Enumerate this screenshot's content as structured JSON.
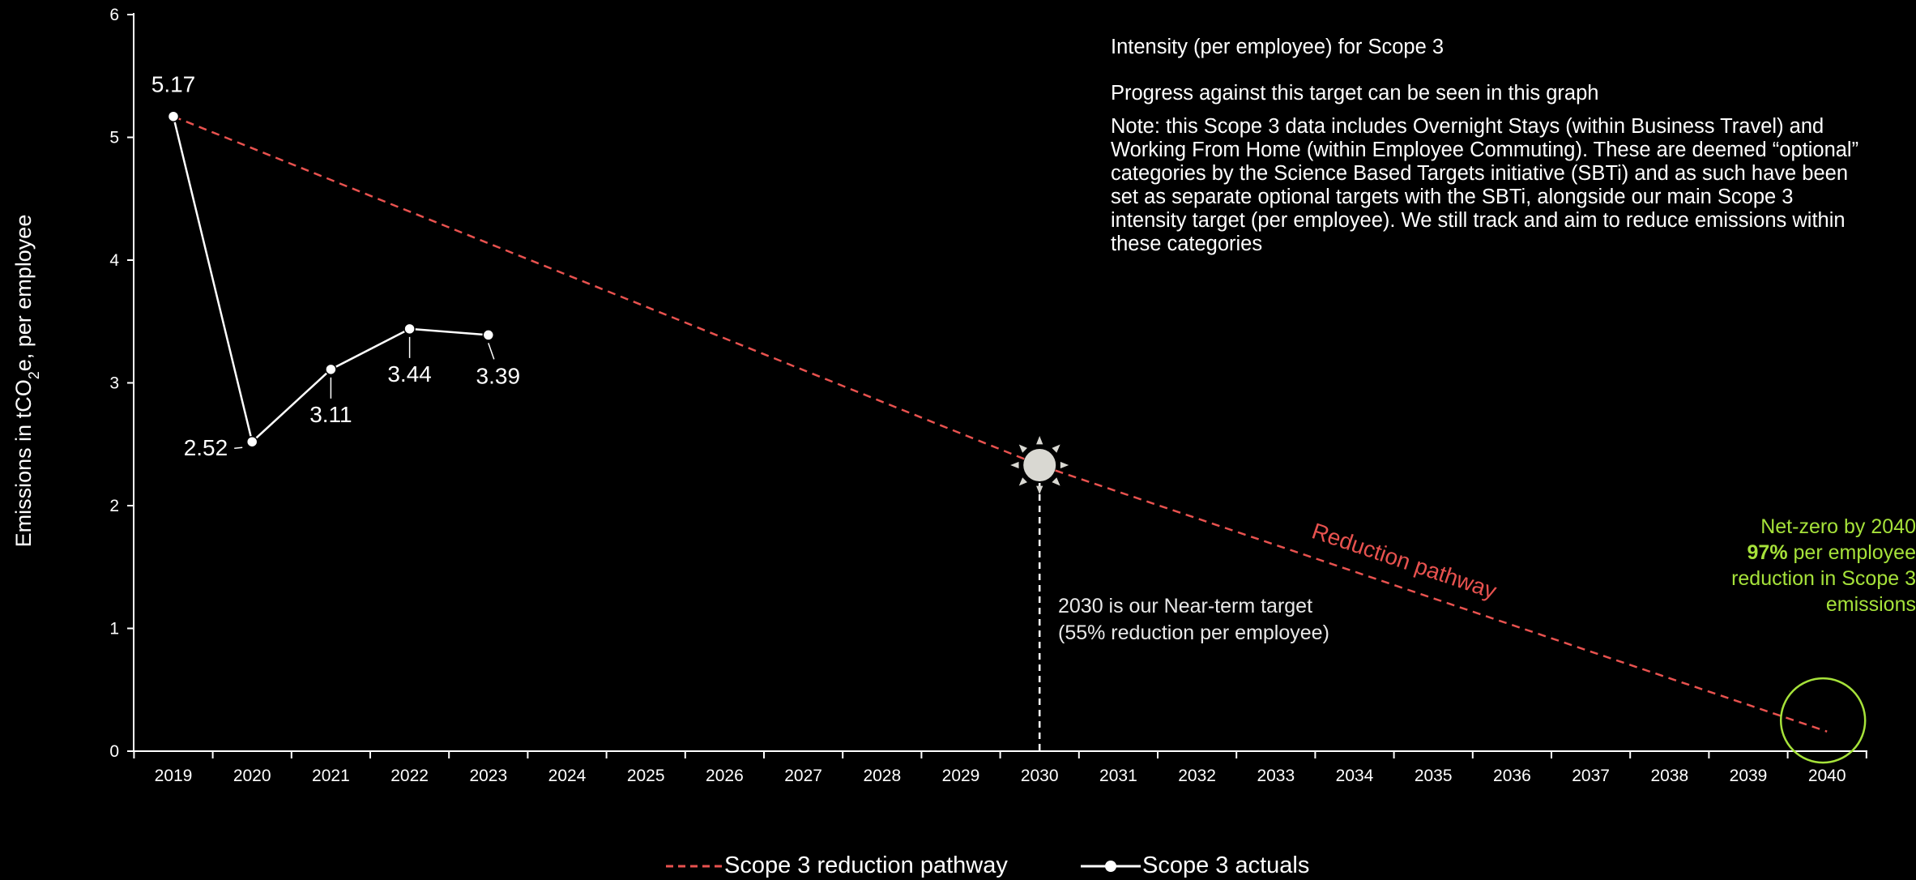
{
  "chart_data": {
    "type": "line",
    "x": [
      "2019",
      "2020",
      "2021",
      "2022",
      "2023",
      "2024",
      "2025",
      "2026",
      "2027",
      "2028",
      "2029",
      "2030",
      "2031",
      "2032",
      "2033",
      "2034",
      "2035",
      "2036",
      "2037",
      "2038",
      "2039",
      "2040"
    ],
    "ylim": [
      0,
      6
    ],
    "yticks": [
      0,
      1,
      2,
      3,
      4,
      5,
      6
    ],
    "ylabel": "Emissions in tCO₂e, per employee",
    "ylabel_parts": {
      "pre": "Emissions in tCO",
      "sub": "2",
      "post": "e, per employee"
    },
    "series": [
      {
        "name": "Scope 3 actuals",
        "color": "#ffffff",
        "points": [
          {
            "x": "2019",
            "y": 5.17,
            "label": "5.17"
          },
          {
            "x": "2020",
            "y": 2.52,
            "label": "2.52"
          },
          {
            "x": "2021",
            "y": 3.11,
            "label": "3.11"
          },
          {
            "x": "2022",
            "y": 3.44,
            "label": "3.44"
          },
          {
            "x": "2023",
            "y": 3.39,
            "label": "3.39"
          }
        ]
      },
      {
        "name": "Scope 3 reduction pathway",
        "color": "#e8524f",
        "style": "dashed",
        "points": [
          {
            "x": "2019",
            "y": 5.17
          },
          {
            "x": "2030",
            "y": 2.33
          },
          {
            "x": "2040",
            "y": 0.16
          }
        ]
      }
    ],
    "annotations": {
      "pathway_label": "Reduction pathway",
      "near_term_target": {
        "year": "2030",
        "line1": "2030 is our Near-term target",
        "line2": "(55% reduction per employee)"
      },
      "net_zero": {
        "year": "2040",
        "line1": "Net-zero by 2040",
        "bold": "97%",
        "line2_rest": " per employee",
        "line3": "reduction in Scope 3",
        "line4": "emissions"
      }
    },
    "grid": false,
    "legend_position": "bottom",
    "colors": {
      "actuals": "#ffffff",
      "pathway": "#e8524f",
      "net_zero": "#a6e23a",
      "target_marker": "#d9d8d2"
    }
  },
  "notes": {
    "title": "Intensity (per employee) for Scope 3",
    "progress": "Progress against this target can be seen in this graph",
    "note": "Note: this Scope 3 data includes Overnight Stays (within Business Travel) and Working From Home (within Employee Commuting). These are deemed “optional” categories by the Science Based Targets initiative (SBTi) and as such have been set as separate optional targets with the SBTi, alongside our main Scope 3 intensity target (per employee). We still track and aim to reduce emissions within these categories"
  },
  "legend": {
    "pathway": "Scope 3 reduction pathway",
    "actuals": "Scope 3 actuals"
  }
}
